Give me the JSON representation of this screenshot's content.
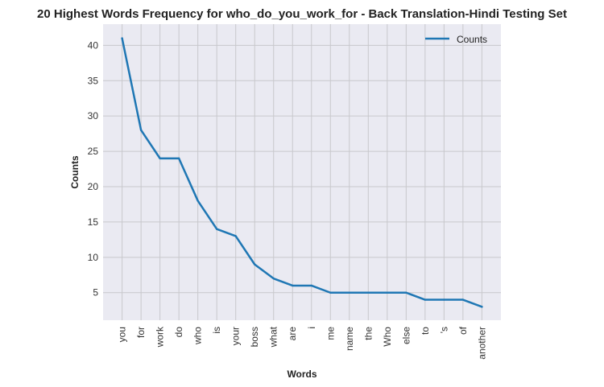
{
  "chart_data": {
    "type": "line",
    "title": "20 Highest Words Frequency for who_do_you_work_for - Back Translation-Hindi Testing Set",
    "xlabel": "Words",
    "ylabel": "Counts",
    "categories": [
      "you",
      "for",
      "work",
      "do",
      "who",
      "is",
      "your",
      "boss",
      "what",
      "are",
      "i",
      "me",
      "name",
      "the",
      "Who",
      "else",
      "to",
      "'s",
      "of",
      "another"
    ],
    "series": [
      {
        "name": "Counts",
        "values": [
          41,
          28,
          24,
          24,
          18,
          14,
          13,
          9,
          7,
          6,
          6,
          5,
          5,
          5,
          5,
          5,
          4,
          4,
          4,
          3
        ],
        "color": "#1f77b4"
      }
    ],
    "ylim": [
      1.1,
      43.0
    ],
    "yticks": [
      5,
      10,
      15,
      20,
      25,
      30,
      35,
      40
    ],
    "grid": true,
    "legend_position": "top-right",
    "background_color": "#eaeaf2",
    "grid_color": "#c8c8cc"
  }
}
